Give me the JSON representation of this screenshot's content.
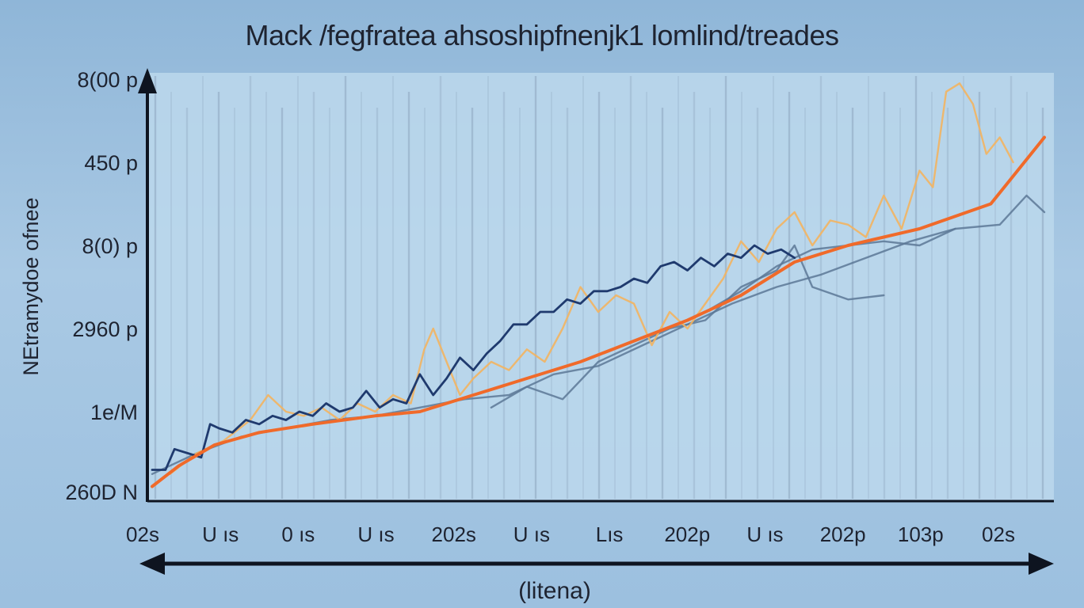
{
  "chart_data": {
    "type": "line",
    "title": "Mack /fegfratea ahsoshipfnenjk1 lomlind/treades",
    "xlabel": "(litena)",
    "ylabel": "NEtramydoe ofnee",
    "x_tick_labels": [
      "02s",
      "U ıs",
      "0 ıs",
      "U ıs",
      "202s",
      "U ıs",
      "Lıs",
      "202p",
      "U ıs",
      "202p",
      "103p",
      "02s"
    ],
    "y_tick_labels": [
      "260D N",
      "1e/M",
      "2960 p",
      "8(0) p",
      "450 p",
      "8(00 p"
    ],
    "ylim": [
      0,
      5
    ],
    "xlim": [
      0,
      100
    ],
    "grid": true,
    "legend": "none",
    "colors": {
      "orange_trend": "#f06a2a",
      "navy": "#1f3a6e",
      "light_orange": "#f3b460",
      "gray_blue": "#5c7896",
      "plot_bg": "#bcd8ec",
      "grid": "#8ea6bf",
      "axis": "#0e1420"
    },
    "series": [
      {
        "key": "orange_trend",
        "x": [
          0,
          3,
          7,
          12,
          18,
          25,
          30,
          36,
          42,
          48,
          54,
          60,
          66,
          72,
          78,
          86,
          94,
          100
        ],
        "y": [
          0.1,
          0.35,
          0.6,
          0.75,
          0.85,
          0.95,
          1.0,
          1.2,
          1.4,
          1.6,
          1.85,
          2.1,
          2.4,
          2.8,
          3.0,
          3.2,
          3.5,
          4.3
        ]
      },
      {
        "key": "navy",
        "x": [
          0,
          1.5,
          2.5,
          4,
          5.5,
          6.5,
          7.5,
          9,
          10.5,
          12,
          13.5,
          15,
          16.5,
          18,
          19.5,
          21,
          22.5,
          24,
          25.5,
          27,
          28.5,
          30,
          31.5,
          33,
          34.5,
          36,
          37.5,
          39,
          40.5,
          42,
          43.5,
          45,
          46.5,
          48,
          49.5,
          51,
          52.5,
          54,
          55.5,
          57,
          58.5,
          60,
          61.5,
          63,
          64.5,
          66,
          67.5,
          69,
          70.5,
          72
        ],
        "y": [
          0.3,
          0.3,
          0.55,
          0.5,
          0.45,
          0.85,
          0.8,
          0.75,
          0.9,
          0.85,
          0.95,
          0.9,
          1.0,
          0.95,
          1.1,
          1.0,
          1.05,
          1.25,
          1.05,
          1.15,
          1.1,
          1.45,
          1.2,
          1.4,
          1.65,
          1.5,
          1.7,
          1.85,
          2.05,
          2.05,
          2.2,
          2.2,
          2.35,
          2.3,
          2.45,
          2.45,
          2.5,
          2.6,
          2.55,
          2.75,
          2.8,
          2.7,
          2.85,
          2.75,
          2.9,
          2.85,
          3.0,
          2.9,
          2.95,
          2.85
        ]
      },
      {
        "key": "light_orange",
        "x": [
          2,
          5,
          8,
          11,
          13,
          15,
          17,
          19,
          21,
          23,
          25,
          27,
          29,
          30.5,
          31.5,
          33,
          34.5,
          36,
          38,
          40,
          42,
          44,
          46,
          48,
          50,
          52,
          54,
          56,
          58,
          60,
          62,
          64,
          66,
          68,
          70,
          72,
          74,
          76,
          78,
          80,
          82,
          84,
          86,
          87.5,
          89,
          90.5,
          92,
          93.5,
          95,
          96.5
        ],
        "y": [
          0.25,
          0.5,
          0.65,
          0.9,
          1.2,
          1.0,
          0.95,
          1.05,
          0.9,
          1.1,
          1.0,
          1.2,
          1.1,
          1.75,
          2.0,
          1.6,
          1.2,
          1.4,
          1.6,
          1.5,
          1.75,
          1.6,
          2.0,
          2.5,
          2.2,
          2.4,
          2.3,
          1.8,
          2.2,
          2.0,
          2.3,
          2.6,
          3.05,
          2.8,
          3.2,
          3.4,
          3.0,
          3.3,
          3.25,
          3.1,
          3.6,
          3.2,
          3.9,
          3.7,
          4.85,
          4.95,
          4.7,
          4.1,
          4.3,
          4.0
        ]
      },
      {
        "key": "gray_blue",
        "x": [
          0,
          5,
          10,
          15,
          20,
          25,
          30,
          35,
          40,
          45,
          50,
          55,
          60,
          65,
          70,
          75,
          80,
          85,
          90,
          95,
          98,
          100
        ],
        "y": [
          0.25,
          0.5,
          0.7,
          0.8,
          0.9,
          0.95,
          1.05,
          1.15,
          1.2,
          1.45,
          1.55,
          1.8,
          2.05,
          2.3,
          2.5,
          2.65,
          2.85,
          3.05,
          3.2,
          3.25,
          3.6,
          3.4
        ]
      },
      {
        "key": "gray_blue",
        "x": [
          38,
          42,
          46,
          50,
          54,
          58,
          62,
          66,
          70,
          72,
          74,
          78,
          82
        ],
        "y": [
          1.05,
          1.3,
          1.15,
          1.6,
          1.8,
          2.0,
          2.1,
          2.5,
          2.7,
          3.0,
          2.5,
          2.35,
          2.4
        ]
      },
      {
        "key": "gray_blue",
        "x": [
          62,
          66,
          70,
          74,
          78,
          82,
          86,
          90
        ],
        "y": [
          2.2,
          2.45,
          2.75,
          2.95,
          3.0,
          3.05,
          3.0,
          3.2
        ]
      }
    ]
  }
}
